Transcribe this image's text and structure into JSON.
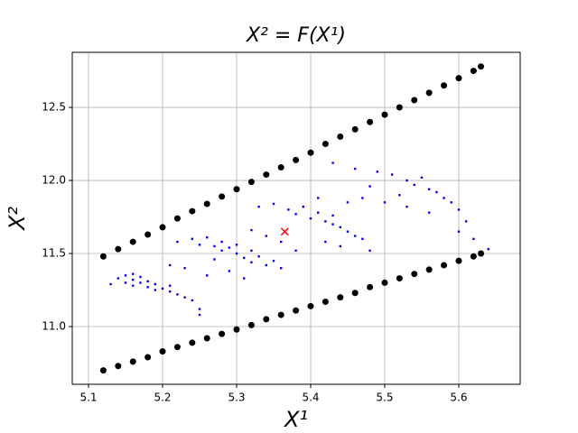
{
  "chart_data": {
    "type": "scatter",
    "title": "X² = F(X¹)",
    "x_label": "X¹",
    "y_label": "X²",
    "xlim": [
      5.078,
      5.683
    ],
    "ylim": [
      10.605,
      12.877
    ],
    "xticks": [
      5.1,
      5.2,
      5.3,
      5.4,
      5.5,
      5.6
    ],
    "yticks": [
      {
        "value": 11,
        "label": "11.0"
      },
      {
        "value": 11.5,
        "label": "11.5"
      },
      {
        "value": 12,
        "label": "12.0"
      },
      {
        "value": 12.5,
        "label": "12.5"
      }
    ],
    "grid": true,
    "series": [
      {
        "color": "#000000",
        "marker": "circle",
        "x": [
          5.12,
          5.14,
          5.16,
          5.18,
          5.2,
          5.22,
          5.24,
          5.26,
          5.28,
          5.3,
          5.32,
          5.34,
          5.36,
          5.38,
          5.4,
          5.42,
          5.44,
          5.46,
          5.48,
          5.5,
          5.52,
          5.54,
          5.56,
          5.58,
          5.6,
          5.62,
          5.63,
          5.12,
          5.14,
          5.16,
          5.18,
          5.2,
          5.22,
          5.24,
          5.26,
          5.28,
          5.3,
          5.32,
          5.34,
          5.36,
          5.38,
          5.4,
          5.42,
          5.44,
          5.46,
          5.48,
          5.5,
          5.52,
          5.54,
          5.56,
          5.58,
          5.6,
          5.62,
          5.63
        ],
        "values": [
          11.48,
          11.53,
          11.58,
          11.63,
          11.68,
          11.74,
          11.79,
          11.84,
          11.89,
          11.94,
          11.99,
          12.04,
          12.09,
          12.14,
          12.19,
          12.25,
          12.3,
          12.35,
          12.4,
          12.45,
          12.5,
          12.55,
          12.6,
          12.65,
          12.7,
          12.75,
          12.78,
          10.7,
          10.73,
          10.76,
          10.79,
          10.83,
          10.86,
          10.89,
          10.92,
          10.95,
          10.98,
          11.01,
          11.05,
          11.08,
          11.11,
          11.14,
          11.17,
          11.2,
          11.23,
          11.27,
          11.3,
          11.33,
          11.36,
          11.39,
          11.42,
          11.45,
          11.48,
          11.5
        ]
      },
      {
        "color": "#0000ff",
        "marker": "square",
        "x": [
          5.14,
          5.15,
          5.15,
          5.16,
          5.16,
          5.17,
          5.17,
          5.18,
          5.18,
          5.19,
          5.2,
          5.21,
          5.22,
          5.23,
          5.24,
          5.13,
          5.16,
          5.19,
          5.21,
          5.25,
          5.22,
          5.24,
          5.25,
          5.26,
          5.27,
          5.28,
          5.28,
          5.29,
          5.3,
          5.3,
          5.31,
          5.32,
          5.32,
          5.33,
          5.34,
          5.35,
          5.36,
          5.21,
          5.23,
          5.26,
          5.29,
          5.31,
          5.25,
          5.27,
          5.33,
          5.35,
          5.37,
          5.38,
          5.39,
          5.4,
          5.41,
          5.42,
          5.43,
          5.44,
          5.45,
          5.46,
          5.47,
          5.32,
          5.34,
          5.36,
          5.38,
          5.42,
          5.44,
          5.48,
          5.41,
          5.45,
          5.43,
          5.43,
          5.46,
          5.49,
          5.51,
          5.53,
          5.54,
          5.55,
          5.56,
          5.57,
          5.58,
          5.59,
          5.6,
          5.52,
          5.5,
          5.48,
          5.47,
          5.53,
          5.56,
          5.61,
          5.62,
          5.64,
          5.6
        ],
        "values": [
          11.33,
          11.35,
          11.3,
          11.32,
          11.28,
          11.34,
          11.3,
          11.31,
          11.27,
          11.29,
          11.26,
          11.24,
          11.22,
          11.2,
          11.18,
          11.29,
          11.36,
          11.25,
          11.28,
          11.12,
          11.58,
          11.6,
          11.56,
          11.61,
          11.55,
          11.58,
          11.52,
          11.54,
          11.5,
          11.56,
          11.47,
          11.52,
          11.44,
          11.48,
          11.42,
          11.45,
          11.4,
          11.42,
          11.4,
          11.35,
          11.38,
          11.33,
          11.08,
          11.46,
          11.82,
          11.84,
          11.8,
          11.77,
          11.82,
          11.74,
          11.78,
          11.72,
          11.76,
          11.68,
          11.65,
          11.62,
          11.6,
          11.66,
          11.62,
          11.58,
          11.52,
          11.58,
          11.55,
          11.52,
          11.88,
          11.85,
          11.7,
          12.12,
          12.08,
          12.06,
          12.04,
          12,
          11.97,
          12.02,
          11.94,
          11.92,
          11.88,
          11.85,
          11.8,
          11.9,
          11.85,
          11.96,
          11.88,
          11.82,
          11.78,
          11.72,
          11.6,
          11.53,
          11.65
        ]
      },
      {
        "color": "#ff0000",
        "marker": "x",
        "x": [
          5.365
        ],
        "values": [
          11.65
        ]
      }
    ]
  }
}
